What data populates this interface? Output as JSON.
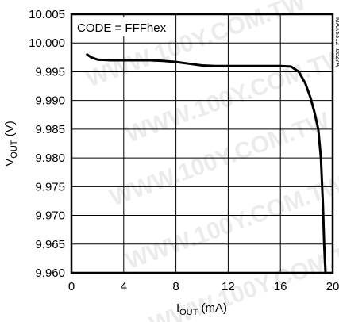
{
  "chart_data": {
    "type": "line",
    "annotation": "CODE = FFFhex",
    "figure_id": "MAX5312 toc27A",
    "watermark": "WWW.100Y.COM.TW",
    "xlabel_main": "I",
    "xlabel_sub": "OUT",
    "xlabel_unit": " (mA)",
    "ylabel_main": "V",
    "ylabel_sub": "OUT",
    "ylabel_unit": " (V)",
    "xlim": [
      0,
      20
    ],
    "ylim": [
      9.96,
      10.005
    ],
    "x_ticks": [
      0,
      4,
      8,
      12,
      16,
      20
    ],
    "x_tick_labels": [
      "0",
      "4",
      "8",
      "12",
      "16",
      "20"
    ],
    "y_ticks": [
      9.96,
      9.965,
      9.97,
      9.975,
      9.98,
      9.985,
      9.99,
      9.995,
      10.0,
      10.005
    ],
    "y_tick_labels": [
      "9.960",
      "9.965",
      "9.970",
      "9.975",
      "9.980",
      "9.985",
      "9.990",
      "9.995",
      "10.000",
      "10.005"
    ],
    "grid": true,
    "series": [
      {
        "x": [
          1.2,
          1.5,
          2.0,
          3.0,
          4.0,
          5.0,
          6.0,
          7.0,
          8.0,
          9.0,
          10.0,
          11.0,
          12.0,
          13.0,
          14.0,
          15.0,
          16.0,
          16.8,
          17.4,
          17.9,
          18.3,
          18.6,
          18.9,
          19.1,
          19.25,
          19.35,
          19.45
        ],
        "y": [
          9.998,
          9.9975,
          9.9971,
          9.997,
          9.997,
          9.997,
          9.997,
          9.9969,
          9.9967,
          9.9964,
          9.9961,
          9.996,
          9.996,
          9.996,
          9.996,
          9.996,
          9.996,
          9.9959,
          9.995,
          9.993,
          9.9905,
          9.988,
          9.985,
          9.98,
          9.972,
          9.965,
          9.96
        ],
        "color": "#000000"
      }
    ]
  }
}
